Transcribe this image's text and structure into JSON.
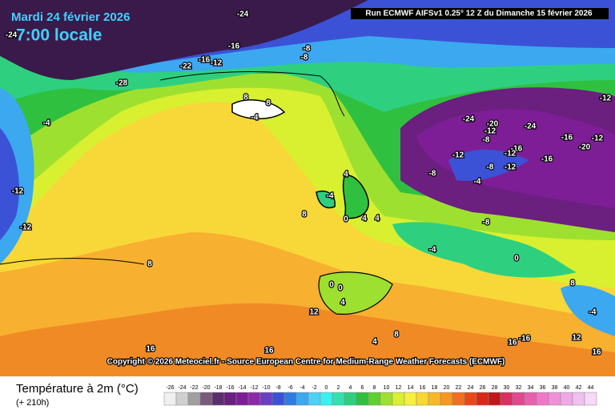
{
  "header": {
    "date": "Mardi 24 février 2026",
    "time": "7:00 locale",
    "run": "Run ECMWF AIFSv1 0.25° 12 Z du Dimanche 15 février 2026",
    "copyright": "Copyright © 2026 Meteociel.fr - Source European Centre for Medium-Range Weather Forecasts (ECMWF)"
  },
  "footer": {
    "title": "Température à 2m (°C)",
    "lead": "(+ 210h)"
  },
  "scale": {
    "values": [
      -26,
      -24,
      -22,
      -20,
      -18,
      -16,
      -14,
      -12,
      -10,
      -8,
      -6,
      -4,
      -2,
      0,
      2,
      4,
      6,
      8,
      10,
      12,
      14,
      16,
      18,
      20,
      22,
      24,
      26,
      28,
      30,
      32,
      34,
      36,
      38,
      40,
      42,
      44
    ],
    "colors": [
      "#f0f0f0",
      "#d0d0d0",
      "#a0a0a0",
      "#7a5a7a",
      "#5a2d6e",
      "#6b1f7f",
      "#7d1e96",
      "#8c2aa8",
      "#6a3ec0",
      "#3b52d6",
      "#2f7be0",
      "#3ba8f0",
      "#4fd0f5",
      "#3cf0f0",
      "#35e0b0",
      "#2ed080",
      "#30c040",
      "#60d030",
      "#9ee030",
      "#d8f030",
      "#f8f040",
      "#f8d830",
      "#f8b828",
      "#f89820",
      "#f07020",
      "#e84818",
      "#d82818",
      "#c01818",
      "#d83060",
      "#e04890",
      "#e860b0",
      "#f078c8",
      "#f090d8",
      "#f0a8e8",
      "#f0c0f0",
      "#f8d8f8"
    ]
  },
  "map_labels": [
    -24,
    -24,
    -16,
    -16,
    -12,
    -22,
    -28,
    -8,
    -8,
    -4,
    -12,
    -12,
    8,
    8,
    -4,
    -24,
    -20,
    -12,
    -24,
    -8,
    -16,
    -20,
    -12,
    -16,
    -12,
    -8,
    -12,
    -16,
    -12,
    -8,
    -4,
    -12,
    4,
    -4,
    8,
    0,
    4,
    4,
    -8,
    -4,
    8,
    0,
    0,
    4,
    12,
    8,
    -4,
    16,
    16,
    8,
    4,
    16,
    -16,
    12,
    16,
    0
  ]
}
